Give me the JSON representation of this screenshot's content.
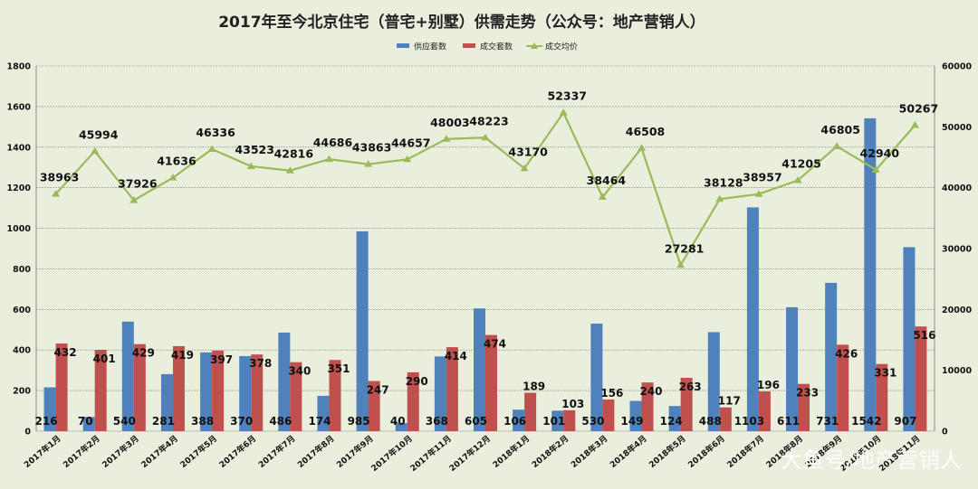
{
  "chart_data": {
    "type": "bar",
    "title": "2017年至今北京住宅（普宅+别墅）供需走势（公众号：地产营销人）",
    "categories": [
      "2017年1月",
      "2017年2月",
      "2017年3月",
      "2017年4月",
      "2017年5月",
      "2017年6月",
      "2017年7月",
      "2017年8月",
      "2017年9月",
      "2017年10月",
      "2017年11月",
      "2017年12月",
      "2018年1月",
      "2018年2月",
      "2018年3月",
      "2018年4月",
      "2018年5月",
      "2018年6月",
      "2018年7月",
      "2018年8月",
      "2018年9月",
      "2018年10月",
      "2018年11月"
    ],
    "series": [
      {
        "name": "供应套数",
        "type": "bar",
        "axis": "left",
        "color": "#4f81bd",
        "values": [
          216,
          70,
          540,
          281,
          388,
          370,
          486,
          174,
          985,
          40,
          368,
          605,
          106,
          101,
          530,
          149,
          124,
          488,
          1103,
          611,
          731,
          1542,
          907
        ]
      },
      {
        "name": "成交套数",
        "type": "bar",
        "axis": "left",
        "color": "#c0504d",
        "values": [
          432,
          401,
          429,
          419,
          397,
          378,
          340,
          351,
          247,
          290,
          414,
          474,
          189,
          103,
          156,
          240,
          263,
          117,
          196,
          233,
          426,
          331,
          516
        ]
      },
      {
        "name": "成交均价",
        "type": "line",
        "axis": "right",
        "color": "#9bbb59",
        "values": [
          38963,
          45994,
          37926,
          41636,
          46336,
          43523,
          42816,
          44686,
          43863,
          44657,
          48003,
          48223,
          43170,
          52337,
          38464,
          46508,
          27281,
          38128,
          38957,
          41205,
          46805,
          42940,
          50267
        ]
      }
    ],
    "y_left": {
      "min": 0,
      "max": 1800,
      "step": 200
    },
    "y_right": {
      "min": 0,
      "max": 60000,
      "step": 10000
    },
    "grid": true,
    "legend_position": "top"
  },
  "watermark": "大鱼号/地产营销人"
}
